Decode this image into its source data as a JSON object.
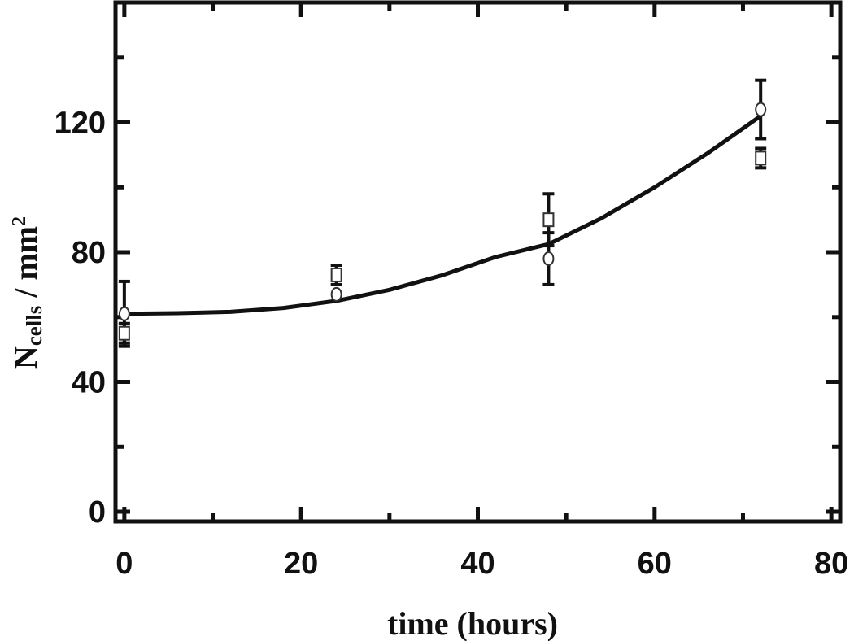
{
  "chart_data": {
    "type": "scatter",
    "title": "",
    "xlabel": "time (hours)",
    "ylabel": {
      "main": "N",
      "subscript": "cells",
      "middle": " / mm",
      "superscript": "2"
    },
    "xlim": [
      -1,
      81
    ],
    "ylim": [
      -3,
      157
    ],
    "x_ticks": [
      0,
      20,
      40,
      60,
      80
    ],
    "y_ticks": [
      0,
      40,
      80,
      120
    ],
    "x_tick_labels": [
      "0",
      "20",
      "40",
      "60",
      "80"
    ],
    "y_tick_labels": [
      "0",
      "40",
      "80",
      "120"
    ],
    "grid": false,
    "legend": "none",
    "series": [
      {
        "marker": "circle",
        "points": [
          {
            "x": 0,
            "y": 61,
            "err": 10
          },
          {
            "x": 24,
            "y": 67,
            "err": 0
          },
          {
            "x": 48,
            "y": 78,
            "err": 8
          },
          {
            "x": 72,
            "y": 124,
            "err": 9
          }
        ]
      },
      {
        "marker": "square",
        "points": [
          {
            "x": 0,
            "y": 55,
            "err": 3
          },
          {
            "x": 24,
            "y": 73,
            "err": 3
          },
          {
            "x": 48,
            "y": 90,
            "err": 8
          },
          {
            "x": 72,
            "y": 109,
            "err": 3
          }
        ]
      },
      {
        "type": "line",
        "marker": "none",
        "x": [
          0,
          6,
          12,
          18,
          24,
          30,
          36,
          42,
          48,
          54,
          60,
          66,
          72
        ],
        "y": [
          61,
          61.2,
          61.6,
          62.8,
          65,
          68.4,
          72.9,
          78.5,
          82.5,
          90.5,
          100,
          110.5,
          122
        ]
      }
    ]
  }
}
